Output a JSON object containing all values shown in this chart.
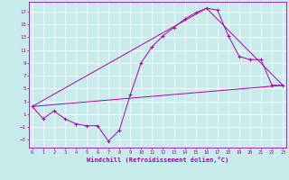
{
  "xlabel": "Windchill (Refroidissement éolien,°C)",
  "bg_color": "#c8ecec",
  "line_color": "#aa00aa",
  "grid_color": "#ffffff",
  "ylim": [
    -4.2,
    18.5
  ],
  "xlim": [
    -0.3,
    23.3
  ],
  "yticks": [
    -3,
    -1,
    1,
    3,
    5,
    7,
    9,
    11,
    13,
    15,
    17
  ],
  "xticks": [
    0,
    1,
    2,
    3,
    4,
    5,
    6,
    7,
    8,
    9,
    10,
    11,
    12,
    13,
    14,
    15,
    16,
    17,
    18,
    19,
    20,
    21,
    22,
    23
  ],
  "line1_x": [
    0,
    1,
    2,
    3,
    4,
    5,
    6,
    7,
    8,
    9,
    10,
    11,
    12,
    13,
    14,
    15,
    16,
    17,
    18,
    19,
    20,
    21,
    22,
    23
  ],
  "line1_y": [
    2.2,
    0.3,
    1.5,
    0.3,
    -0.5,
    -0.8,
    -0.8,
    -3.2,
    -1.5,
    4.0,
    9.0,
    11.5,
    13.2,
    14.5,
    15.8,
    16.8,
    17.5,
    17.2,
    13.2,
    10.0,
    9.5,
    9.5,
    5.5,
    5.5
  ],
  "line2_x": [
    0,
    16,
    23
  ],
  "line2_y": [
    2.2,
    17.5,
    5.5
  ],
  "line3_x": [
    0,
    23
  ],
  "line3_y": [
    2.2,
    5.5
  ]
}
